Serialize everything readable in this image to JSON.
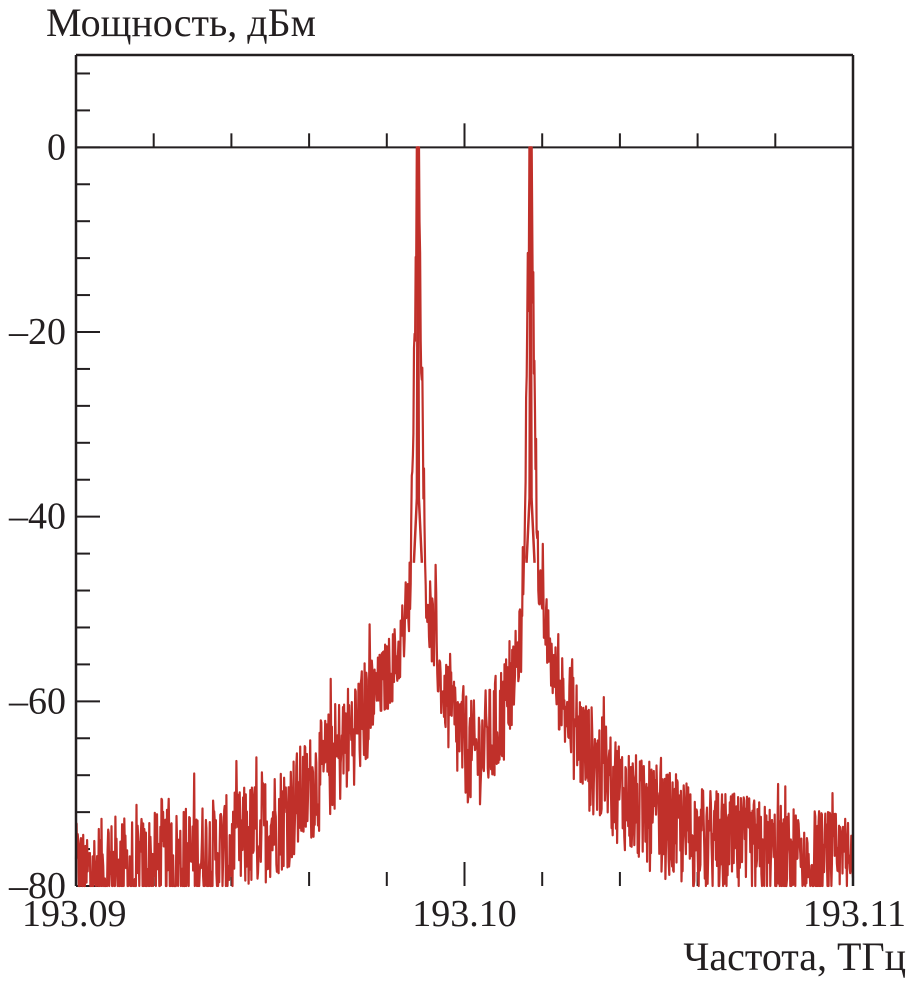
{
  "chart_data": {
    "type": "line",
    "title": "",
    "ylabel": "Мощность, дБм",
    "xlabel": "Частота, ТГц",
    "xlim": [
      193.09,
      193.11
    ],
    "ylim": [
      -80,
      10
    ],
    "x_tick_labels": [
      "193.09",
      "193.10",
      "193.11"
    ],
    "x_tick_values": [
      193.09,
      193.1,
      193.11
    ],
    "y_tick_labels": [
      "0",
      "–20",
      "–40",
      "–60",
      "–80"
    ],
    "y_tick_values": [
      0,
      -20,
      -40,
      -60,
      -80
    ],
    "grid": false,
    "series": [
      {
        "color": "#c0302a",
        "peaks": [
          {
            "x": 193.0988,
            "y": 0
          },
          {
            "x": 193.1017,
            "y": 0
          }
        ],
        "envelope": [
          {
            "x": 193.09,
            "y": -79
          },
          {
            "x": 193.092,
            "y": -78
          },
          {
            "x": 193.094,
            "y": -76
          },
          {
            "x": 193.0955,
            "y": -72
          },
          {
            "x": 193.0965,
            "y": -67
          },
          {
            "x": 193.0975,
            "y": -61
          },
          {
            "x": 193.0983,
            "y": -55
          },
          {
            "x": 193.0986,
            "y": -48
          },
          {
            "x": 193.0988,
            "y": 0
          },
          {
            "x": 193.099,
            "y": -48
          },
          {
            "x": 193.0994,
            "y": -58
          },
          {
            "x": 193.0998,
            "y": -63
          },
          {
            "x": 193.1002,
            "y": -66
          },
          {
            "x": 193.1007,
            "y": -64
          },
          {
            "x": 193.1012,
            "y": -59
          },
          {
            "x": 193.1015,
            "y": -52
          },
          {
            "x": 193.1017,
            "y": 0
          },
          {
            "x": 193.1019,
            "y": -48
          },
          {
            "x": 193.1024,
            "y": -59
          },
          {
            "x": 193.1032,
            "y": -66
          },
          {
            "x": 193.1045,
            "y": -72
          },
          {
            "x": 193.106,
            "y": -75
          },
          {
            "x": 193.108,
            "y": -77
          },
          {
            "x": 193.11,
            "y": -78
          }
        ]
      }
    ]
  }
}
